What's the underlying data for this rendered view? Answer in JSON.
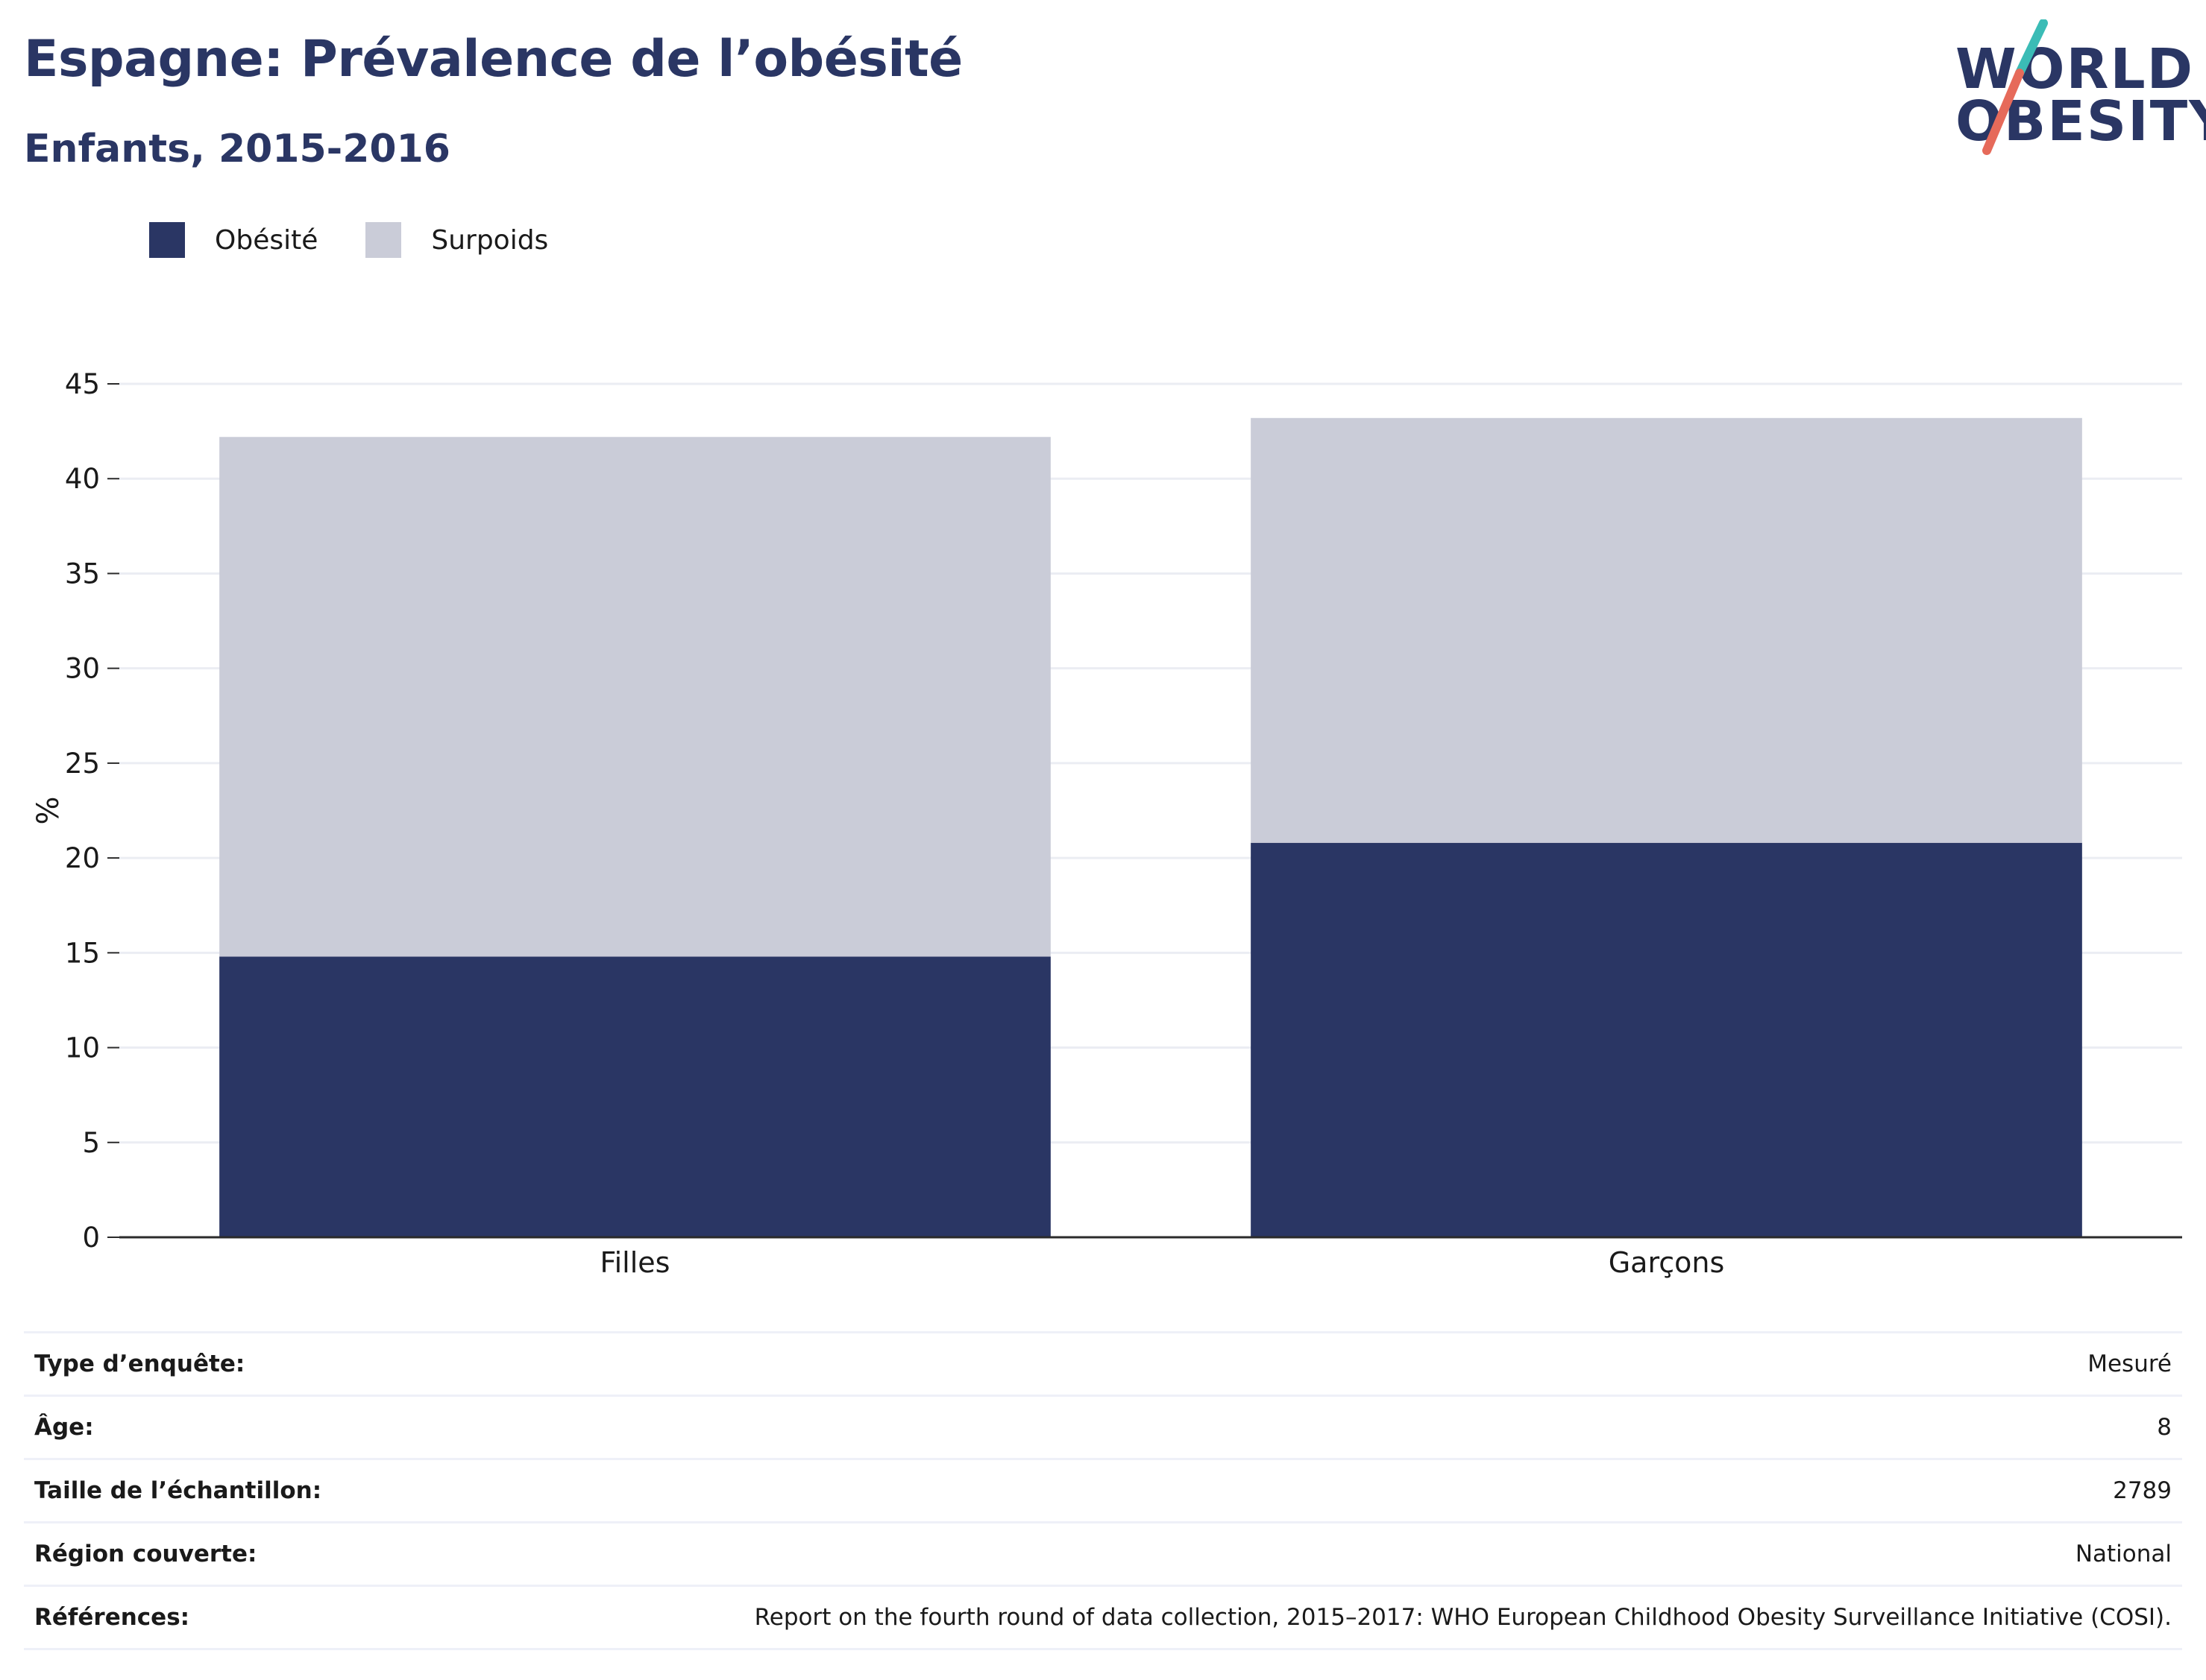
{
  "header": {
    "title": "Espagne: Prévalence de l’obésité",
    "subtitle": "Enfants, 2015-2016"
  },
  "logo": {
    "line1": "WORLD",
    "line2": "OBESITY",
    "slash_colors": [
      "#3bbcb6",
      "#e66a5a"
    ]
  },
  "colors": {
    "obesity": "#2a3664",
    "overweight": "#caccd8",
    "grid": "#ebedf3",
    "axis": "#2b2b2b"
  },
  "chart_data": {
    "type": "bar",
    "stacked": true,
    "categories": [
      "Filles",
      "Garçons"
    ],
    "series": [
      {
        "name": "Obésité",
        "values": [
          14.8,
          20.8
        ],
        "color": "#2a3664"
      },
      {
        "name": "Surpoids",
        "values": [
          27.4,
          22.4
        ],
        "color": "#caccd8"
      }
    ],
    "xlabel": "",
    "ylabel": "%",
    "ylim": [
      0,
      45
    ],
    "yticks": [
      0,
      5,
      10,
      15,
      20,
      25,
      30,
      35,
      40,
      45
    ],
    "grid": true,
    "legend_position": "top-left"
  },
  "info": [
    {
      "label": "Type d’enquête:",
      "value": "Mesuré"
    },
    {
      "label": "Âge:",
      "value": "8"
    },
    {
      "label": "Taille de l’échantillon:",
      "value": "2789"
    },
    {
      "label": "Région couverte:",
      "value": "National"
    },
    {
      "label": "Références:",
      "value": "Report on the fourth round of data collection, 2015–2017: WHO European Childhood Obesity Surveillance Initiative (COSI)."
    }
  ]
}
